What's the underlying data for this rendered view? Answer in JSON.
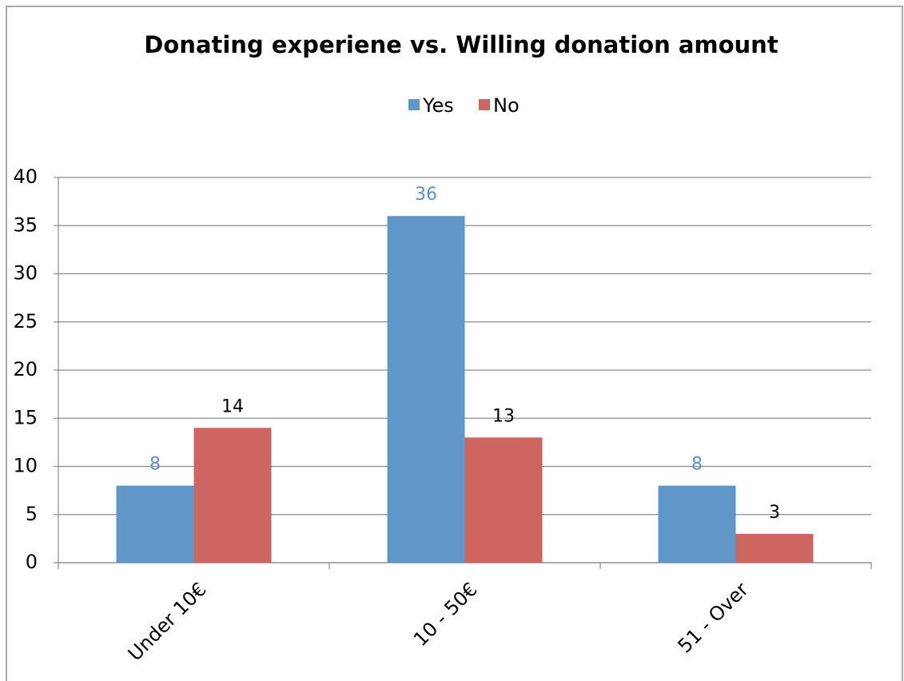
{
  "chart_data": {
    "type": "bar",
    "title": "Donating experiene vs. Willing donation amount",
    "categories": [
      "Under 10€",
      "10 - 50€",
      "51 - Over"
    ],
    "series": [
      {
        "name": "Yes",
        "color": "#6097c9",
        "label_color": "#5b8fcf",
        "values": [
          8,
          36,
          8
        ]
      },
      {
        "name": "No",
        "color": "#cd6660",
        "label_color": "#000000",
        "values": [
          14,
          13,
          3
        ]
      }
    ],
    "ylim": [
      0,
      40
    ],
    "yticks": [
      0,
      5,
      10,
      15,
      20,
      25,
      30,
      35,
      40
    ],
    "grid": true,
    "legend": "top"
  }
}
